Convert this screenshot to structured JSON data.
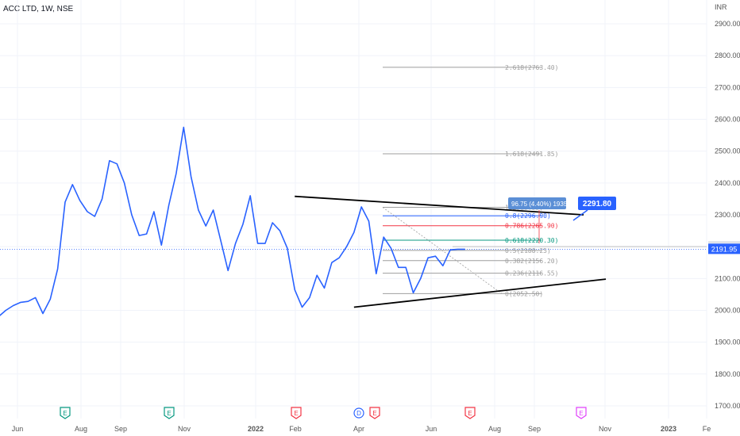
{
  "header": {
    "symbol": "ACC LTD, 1W, NSE",
    "currency": "INR"
  },
  "chart_data": {
    "type": "line",
    "title": "ACC LTD, 1W, NSE",
    "ylabel": "INR",
    "ylim": [
      1680,
      2920
    ],
    "y_ticks": [
      1700,
      1800,
      1900,
      2000,
      2100,
      2200,
      2300,
      2400,
      2500,
      2600,
      2700,
      2800,
      2900
    ],
    "y_tick_labels": [
      "1700.00",
      "1800.00",
      "1900.00",
      "2000.00",
      "2100.00",
      "2200.00",
      "2300.00",
      "2400.00",
      "2500.00",
      "2600.00",
      "2700.00",
      "2800.00",
      "2900.00"
    ],
    "x_tick_labels": [
      "Jun",
      "Aug",
      "Sep",
      "Nov",
      "2022",
      "Feb",
      "Apr",
      "Jun",
      "Aug",
      "Sep",
      "Nov",
      "2023",
      "Fe"
    ],
    "grid": true,
    "series": [
      {
        "name": "ACC LTD",
        "color": "#2962ff",
        "x": [
          0,
          1,
          2,
          3,
          4,
          5,
          6,
          7,
          8,
          9,
          10,
          11,
          12,
          13,
          14,
          15,
          16,
          17,
          18,
          19,
          20,
          21,
          22,
          23,
          24,
          25,
          26,
          27,
          28,
          29,
          30,
          31,
          32,
          33,
          34,
          35,
          36,
          37,
          38,
          39,
          40,
          41,
          42,
          43,
          44,
          45,
          46,
          47,
          48,
          49,
          50,
          51,
          52,
          53,
          54,
          55,
          56,
          57,
          58,
          59,
          60,
          61,
          62,
          63
        ],
        "values": [
          1980,
          2000,
          2015,
          2025,
          2028,
          2040,
          1990,
          2035,
          2130,
          2340,
          2395,
          2345,
          2310,
          2295,
          2350,
          2470,
          2460,
          2400,
          2300,
          2235,
          2240,
          2310,
          2205,
          2330,
          2430,
          2575,
          2420,
          2315,
          2265,
          2315,
          2220,
          2125,
          2210,
          2270,
          2360,
          2210,
          2210,
          2275,
          2250,
          2195,
          2065,
          2010,
          2040,
          2110,
          2070,
          2150,
          2165,
          2200,
          2245,
          2325,
          2280,
          2115,
          2230,
          2195,
          2135,
          2135,
          2055,
          2100,
          2165,
          2170,
          2140,
          2190,
          2192,
          2192
        ]
      }
    ],
    "current_price": {
      "value": "2191.95",
      "color": "#2962ff"
    },
    "secondary_price": {
      "value": "2200.15"
    },
    "target_label": {
      "value": "2291.80",
      "color": "#2962ff"
    },
    "measure_label": {
      "text": "96.75 (4.40%) 1935"
    },
    "fibonacci": [
      {
        "level": "2.618",
        "price": 2763.4,
        "label": "2.618(2763.40)",
        "color": "#9e9e9e"
      },
      {
        "level": "1.618",
        "price": 2491.85,
        "label": "1.618(2491.85)",
        "color": "#9e9e9e"
      },
      {
        "level": "1",
        "price": 2323.55,
        "label": "1(2323.55)",
        "color": "#9e9e9e"
      },
      {
        "level": "0.786",
        "price": 2265.9,
        "label": "0.786(2265.90)",
        "color": "#f23645"
      },
      {
        "level": "0.618",
        "price": 2220.3,
        "label": "0.618(2220.30)",
        "color": "#089981"
      },
      {
        "level": "0.5",
        "price": 2188.25,
        "label": "0.5(2188.25)",
        "color": "#9e9e9e"
      },
      {
        "level": "0.382",
        "price": 2156.2,
        "label": "0.382(2156.20)",
        "color": "#9e9e9e"
      },
      {
        "level": "0.236",
        "price": 2116.55,
        "label": "0.236(2116.55)",
        "color": "#9e9e9e"
      },
      {
        "level": "0",
        "price": 2052.5,
        "label": "0(2052.50)",
        "color": "#9e9e9e"
      }
    ],
    "fib_extra": {
      "label": "0.8(2296.90)",
      "price": 2296.9,
      "color": "#2962ff"
    },
    "trendlines": [
      {
        "name": "upper-resistance",
        "from": [
          40,
          2358
        ],
        "to": [
          79,
          2300
        ],
        "color": "#000000"
      },
      {
        "name": "lower-support",
        "from": [
          48,
          2010
        ],
        "to": [
          82,
          2098
        ],
        "color": "#000000"
      }
    ],
    "events": [
      {
        "letter": "E",
        "color": "#089981"
      },
      {
        "letter": "E",
        "color": "#089981"
      },
      {
        "letter": "E",
        "color": "#f23645"
      },
      {
        "letter": "D",
        "color": "#2962ff"
      },
      {
        "letter": "E",
        "color": "#f23645"
      },
      {
        "letter": "E",
        "color": "#f23645"
      },
      {
        "letter": "E",
        "color": "#e040fb"
      }
    ]
  }
}
